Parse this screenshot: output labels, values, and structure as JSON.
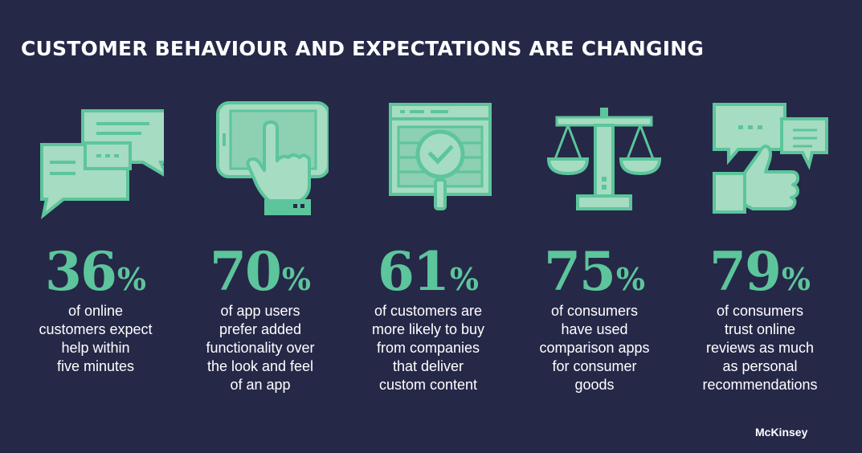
{
  "title": "CUSTOMER BEHAVIOUR AND EXPECTATIONS ARE CHANGING",
  "colors": {
    "background": "#262848",
    "accent": "#5cc59b",
    "icon_fill": "#a6dcc2",
    "text": "#ffffff"
  },
  "stats": [
    {
      "icon": "chat-bubbles-icon",
      "number": "36",
      "sign": "%",
      "lines": [
        "of online",
        "customers expect",
        "help within",
        "five minutes"
      ]
    },
    {
      "icon": "tablet-touch-icon",
      "number": "70",
      "sign": "%",
      "lines": [
        "of app users",
        "prefer added",
        "functionality over",
        "the look and feel",
        "of an app"
      ]
    },
    {
      "icon": "magnifier-check-icon",
      "number": "61",
      "sign": "%",
      "lines": [
        "of customers are",
        "more likely to buy",
        "from companies",
        "that deliver",
        "custom content"
      ]
    },
    {
      "icon": "scales-icon",
      "number": "75",
      "sign": "%",
      "lines": [
        "of consumers",
        "have used",
        "comparison apps",
        "for consumer",
        "goods"
      ]
    },
    {
      "icon": "thumbs-up-reviews-icon",
      "number": "79",
      "sign": "%",
      "lines": [
        "of consumers",
        "trust online",
        "reviews as much",
        "as personal",
        "recommendations"
      ]
    }
  ],
  "brand": "McKinsey"
}
